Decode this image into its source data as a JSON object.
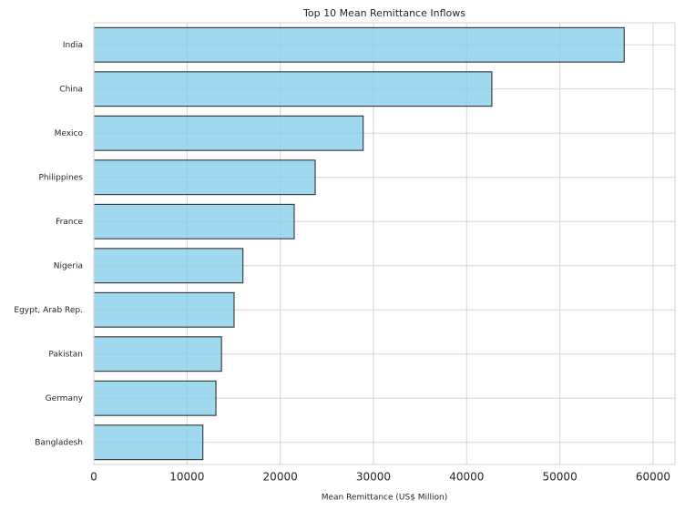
{
  "chart_data": {
    "type": "barh",
    "title": "Top 10 Mean Remittance Inflows",
    "xlabel": "Mean Remittance (US$ Million)",
    "categories": [
      "India",
      "China",
      "Mexico",
      "Philippines",
      "France",
      "Nigeria",
      "Egypt, Arab Rep.",
      "Pakistan",
      "Germany",
      "Bangladesh"
    ],
    "values": [
      56900,
      42700,
      28900,
      23750,
      21500,
      16000,
      15050,
      13700,
      13100,
      11700
    ],
    "color": "#87ceeb",
    "edgecolor": "#222222",
    "xlim": [
      0,
      62350
    ],
    "xticks": [
      0,
      10000,
      20000,
      30000,
      40000,
      50000,
      60000
    ],
    "grid": true
  }
}
